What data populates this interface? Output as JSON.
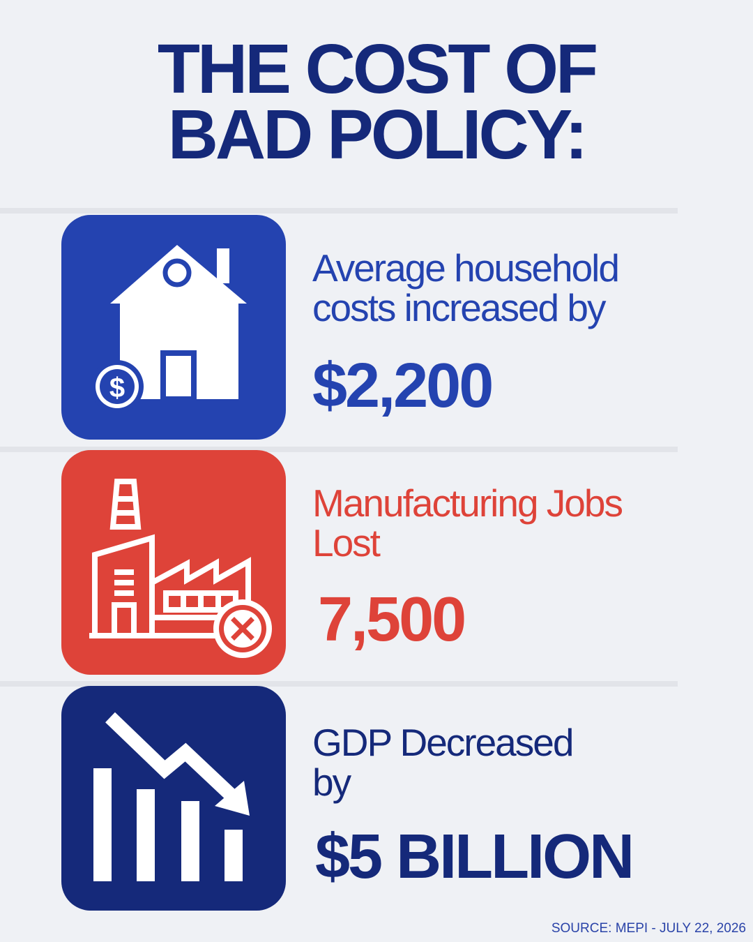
{
  "title": {
    "line1": "THE COST OF",
    "line2": "BAD POLICY:"
  },
  "stats": [
    {
      "icon": "house-dollar-icon",
      "desc_line1": "Average household",
      "desc_line2": "costs increased by",
      "value": "$2,200",
      "color": "#2443b0"
    },
    {
      "icon": "factory-x-icon",
      "desc_line1": "Manufacturing Jobs",
      "desc_line2": "Lost",
      "value": "7,500",
      "color": "#de4339"
    },
    {
      "icon": "chart-decline-icon",
      "desc_line1": "GDP Decreased",
      "desc_line2": "by",
      "value": "$5 BILLION",
      "color": "#15297a"
    }
  ],
  "icon_symbols": {
    "dollar": "$"
  },
  "source": "SOURCE: MEPI - JULY 22, 2026",
  "colors": {
    "background": "#eff1f5",
    "title": "#15297a",
    "blue": "#2443b0",
    "red": "#de4339",
    "navy": "#15297a"
  }
}
